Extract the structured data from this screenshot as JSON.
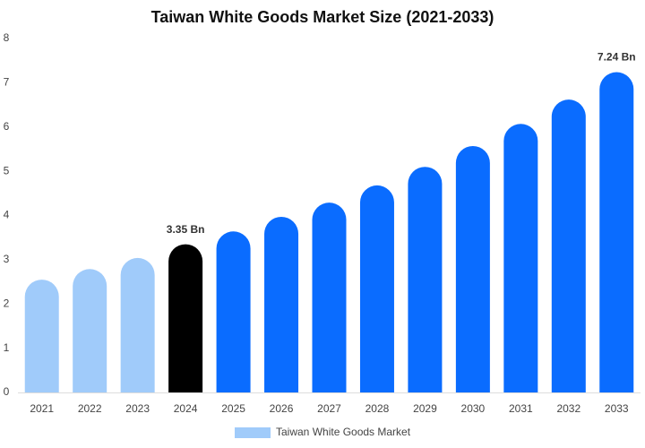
{
  "chart_data": {
    "type": "bar",
    "title": "Taiwan White Goods Market Size (2021-2033)",
    "categories": [
      "2021",
      "2022",
      "2023",
      "2024",
      "2025",
      "2026",
      "2027",
      "2028",
      "2029",
      "2030",
      "2031",
      "2032",
      "2033"
    ],
    "series": [
      {
        "name": "Taiwan White Goods Market",
        "color": "#a0cbfa",
        "colors": [
          "#a0cbfa",
          "#a0cbfa",
          "#a0cbfa",
          "#000000",
          "#0a6cff",
          "#0a6cff",
          "#0a6cff",
          "#0a6cff",
          "#0a6cff",
          "#0a6cff",
          "#0a6cff",
          "#0a6cff",
          "#0a6cff"
        ],
        "values": [
          2.55,
          2.79,
          3.04,
          3.35,
          3.64,
          3.97,
          4.29,
          4.68,
          5.1,
          5.57,
          6.07,
          6.62,
          7.24
        ],
        "value_labels": [
          null,
          null,
          null,
          "3.35 Bn",
          null,
          null,
          null,
          null,
          null,
          null,
          null,
          null,
          "7.24 Bn"
        ]
      }
    ],
    "ylim": [
      0,
      8
    ],
    "yticks": [
      0,
      1,
      2,
      3,
      4,
      5,
      6,
      7,
      8
    ]
  }
}
